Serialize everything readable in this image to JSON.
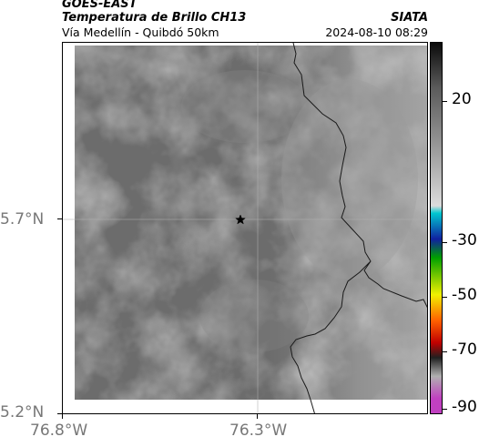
{
  "header": {
    "satellite": "GOES-EAST",
    "product": "Temperatura de Brillo CH13",
    "region": "Vía Medellín - Quibdó 50km",
    "organization": "SIATA",
    "datetime": "2024-08-10 08:29"
  },
  "map": {
    "latitude_labels": [
      "5.7°N",
      "5.2°N"
    ],
    "longitude_labels": [
      "76.8°W",
      "76.3°W"
    ],
    "marker": "star-marker"
  },
  "colorbar": {
    "tick_labels": [
      "20",
      "-30",
      "-50",
      "-70",
      "-90"
    ],
    "colors": [
      "#0a0a0a",
      "#5a5a5a",
      "#a0a0a0",
      "#dcdcdc",
      "#00c8d0",
      "#1020a0",
      "#00a000",
      "#f0f000",
      "#ff6000",
      "#c00000",
      "#202020",
      "#b0b0b0",
      "#c040c0"
    ]
  }
}
